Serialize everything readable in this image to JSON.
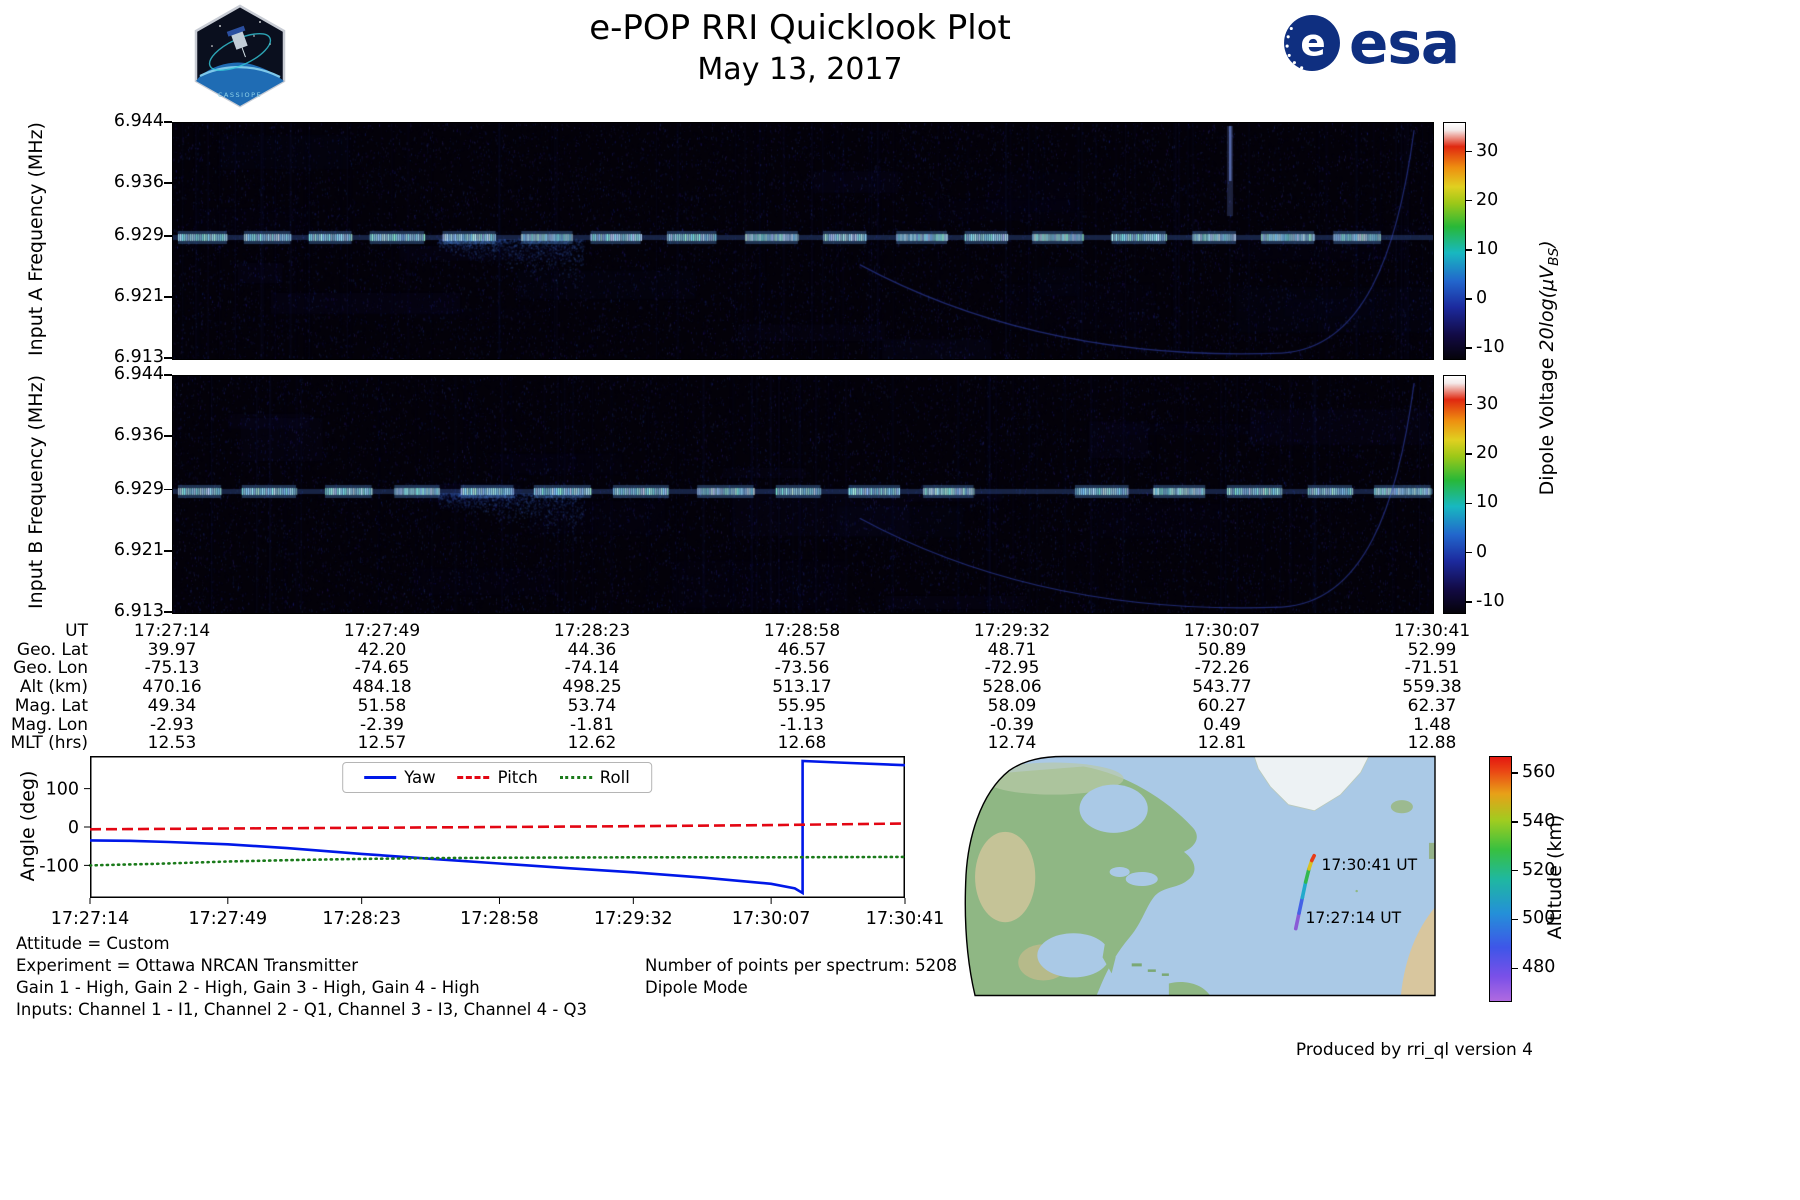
{
  "header": {
    "title": "e-POP RRI Quicklook Plot",
    "date": "May 13, 2017",
    "cassiope_patch": "CASSIOPE",
    "esa_wordmark": "esa",
    "esa_emblem_letter": "e"
  },
  "chart_data": [
    {
      "id": "spectrogram_input_a",
      "type": "heatmap",
      "ylabel": "Input A Frequency (MHz)",
      "ylim_mhz": [
        6.913,
        6.944
      ],
      "yticks_mhz": [
        6.944,
        6.936,
        6.929,
        6.921,
        6.913
      ],
      "x_ticklabels": [
        "17:27:14",
        "17:27:49",
        "17:28:23",
        "17:28:58",
        "17:29:32",
        "17:30:07",
        "17:30:41"
      ],
      "signal_band_mhz": 6.929,
      "signal_description": "Pulsed Ottawa NRCAN transmitter carrier at 6.929 MHz seen as regular on/off dashes; diffuse ionospheric spread below the carrier near 17:27:49; faint blue noise background with a weak curved trace in the lower right",
      "colorbar": {
        "label_parts": [
          "Dipole Voltage ",
          "20log(μV",
          "BS",
          ")"
        ],
        "ticks": [
          30,
          20,
          10,
          0,
          -10
        ],
        "vmin": -12,
        "vmax": 36
      }
    },
    {
      "id": "spectrogram_input_b",
      "type": "heatmap",
      "ylabel": "Input B Frequency (MHz)",
      "ylim_mhz": [
        6.913,
        6.944
      ],
      "yticks_mhz": [
        6.944,
        6.936,
        6.929,
        6.921,
        6.913
      ],
      "x_ticklabels": [
        "17:27:14",
        "17:27:49",
        "17:28:23",
        "17:28:58",
        "17:29:32",
        "17:30:07",
        "17:30:41"
      ],
      "signal_band_mhz": 6.929,
      "signal_description": "Same pulsed 6.929 MHz transmitter signal on Input B, slightly dimmer",
      "colorbar": {
        "label_parts": [
          "Dipole Voltage ",
          "20log(μV",
          "BS",
          ")"
        ],
        "ticks": [
          30,
          20,
          10,
          0,
          -10
        ],
        "vmin": -12,
        "vmax": 36
      }
    },
    {
      "id": "attitude_angles",
      "type": "line",
      "ylabel": "Angle (deg)",
      "yticks": [
        100,
        0,
        -100
      ],
      "ylim": [
        -185,
        185
      ],
      "x_tick_seconds": [
        0,
        35,
        69,
        104,
        138,
        173,
        207
      ],
      "x_ticklabels": [
        "17:27:14",
        "17:27:49",
        "17:28:23",
        "17:28:58",
        "17:29:32",
        "17:30:07",
        "17:30:41"
      ],
      "series": [
        {
          "name": "Yaw",
          "color": "#0018e8",
          "style": "solid",
          "x": [
            0,
            10,
            20,
            35,
            50,
            69,
            87,
            104,
            121,
            138,
            156,
            173,
            179,
            181,
            181,
            190,
            207
          ],
          "y": [
            -35,
            -36,
            -39,
            -45,
            -55,
            -70,
            -83,
            -95,
            -107,
            -118,
            -132,
            -148,
            -160,
            -172,
            172,
            168,
            161
          ]
        },
        {
          "name": "Pitch",
          "color": "#e30613",
          "style": "dashed",
          "x": [
            0,
            35,
            69,
            104,
            138,
            173,
            207
          ],
          "y": [
            -6,
            -4,
            -2,
            0,
            2,
            5,
            9
          ]
        },
        {
          "name": "Roll",
          "color": "#1a7a1a",
          "style": "dotted",
          "x": [
            0,
            17,
            35,
            52,
            69,
            87,
            104,
            138,
            173,
            207
          ],
          "y": [
            -100,
            -96,
            -90,
            -86,
            -83,
            -81,
            -80,
            -79,
            -79,
            -78
          ]
        }
      ]
    },
    {
      "id": "ephemeris_table",
      "type": "table",
      "rows": [
        {
          "label": "UT",
          "values": [
            "17:27:14",
            "17:27:49",
            "17:28:23",
            "17:28:58",
            "17:29:32",
            "17:30:07",
            "17:30:41"
          ]
        },
        {
          "label": "Geo. Lat",
          "values": [
            "39.97",
            "42.20",
            "44.36",
            "46.57",
            "48.71",
            "50.89",
            "52.99"
          ]
        },
        {
          "label": "Geo. Lon",
          "values": [
            "-75.13",
            "-74.65",
            "-74.14",
            "-73.56",
            "-72.95",
            "-72.26",
            "-71.51"
          ]
        },
        {
          "label": "Alt (km)",
          "values": [
            "470.16",
            "484.18",
            "498.25",
            "513.17",
            "528.06",
            "543.77",
            "559.38"
          ]
        },
        {
          "label": "Mag. Lat",
          "values": [
            "49.34",
            "51.58",
            "53.74",
            "55.95",
            "58.09",
            "60.27",
            "62.37"
          ]
        },
        {
          "label": "Mag. Lon",
          "values": [
            "-2.93",
            "-2.39",
            "-1.81",
            "-1.13",
            "-0.39",
            "0.49",
            "1.48"
          ]
        },
        {
          "label": "MLT (hrs)",
          "values": [
            "12.53",
            "12.57",
            "12.62",
            "12.68",
            "12.74",
            "12.81",
            "12.88"
          ]
        }
      ]
    },
    {
      "id": "ground_track_map",
      "type": "map",
      "start_label": "17:27:14 UT",
      "end_label": "17:30:41 UT",
      "track_points_frac": [
        [
          0.705,
          0.72
        ],
        [
          0.712,
          0.655
        ],
        [
          0.719,
          0.59
        ],
        [
          0.726,
          0.525
        ],
        [
          0.733,
          0.47
        ],
        [
          0.739,
          0.435
        ],
        [
          0.744,
          0.415
        ]
      ],
      "track_segment_colors": [
        "#8a5bd6",
        "#4462e6",
        "#22aacc",
        "#32b84e",
        "#d8c020",
        "#e83c18"
      ],
      "track_altitude_km": [
        470.16,
        559.38
      ],
      "colorbar": {
        "label": "Altitude (km)",
        "ticks": [
          560,
          540,
          520,
          500,
          480
        ],
        "vmin": 467,
        "vmax": 567
      }
    }
  ],
  "footer": {
    "attitude": "Attitude = Custom",
    "experiment": "Experiment = Ottawa NRCAN Transmitter",
    "gains": "Gain 1 - High, Gain 2 - High, Gain 3 - High, Gain 4 - High",
    "inputs": "Inputs: Channel 1 - I1, Channel 2 - Q1, Channel 3 - I3, Channel 4 - Q3",
    "points_per_spectrum": "Number of points per spectrum: 5208",
    "mode": "Dipole Mode",
    "produced_by": "Produced by rri_ql version 4"
  }
}
